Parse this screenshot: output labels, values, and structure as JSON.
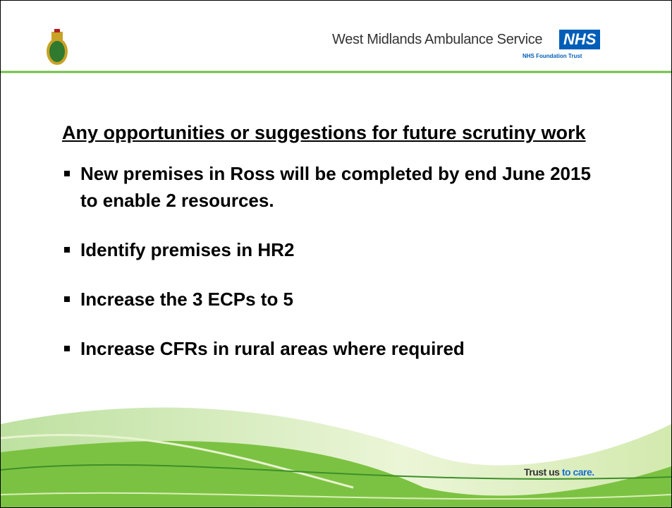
{
  "header": {
    "org_name": "West Midlands Ambulance Service",
    "nhs_logo": "NHS",
    "trust": "NHS Foundation Trust"
  },
  "title": "Any opportunities or suggestions for future scrutiny work",
  "bullets": [
    "New premises in Ross will be completed by end June 2015 to enable 2 resources.",
    "Identify premises in HR2",
    "Increase the 3 ECPs to 5",
    "Increase CFRs in rural areas where required"
  ],
  "footer": {
    "tagline_1": "Trust us",
    "tagline_2": "to care."
  }
}
